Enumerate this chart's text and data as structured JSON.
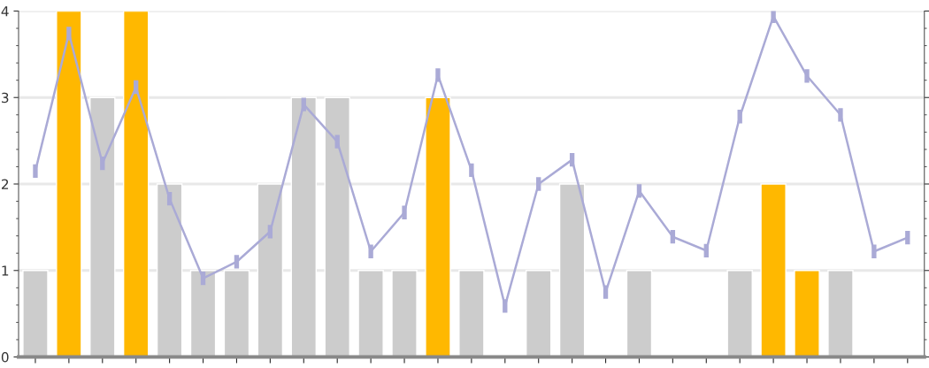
{
  "chart_data": {
    "type": "bar",
    "categories": [
      null,
      null,
      null,
      null,
      null,
      null,
      null,
      null,
      null,
      null,
      null,
      null,
      null,
      null,
      null,
      null,
      null,
      null,
      null,
      null,
      null,
      null,
      null,
      null,
      null,
      null,
      null
    ],
    "series": [
      {
        "values": [
          1,
          4,
          3,
          4,
          2,
          1,
          1,
          2,
          3,
          3,
          1,
          1,
          3,
          1,
          null,
          1,
          2,
          null,
          1,
          null,
          null,
          1,
          2,
          1,
          1,
          null,
          null
        ],
        "colors": [
          "#cccccc",
          "#ffb800",
          "#cccccc",
          "#ffb800",
          "#cccccc",
          "#cccccc",
          "#cccccc",
          "#cccccc",
          "#cccccc",
          "#cccccc",
          "#cccccc",
          "#cccccc",
          "#ffb800",
          "#cccccc",
          null,
          "#cccccc",
          "#cccccc",
          null,
          "#cccccc",
          null,
          null,
          "#cccccc",
          "#ffb800",
          "#ffb800",
          "#cccccc",
          null,
          null
        ]
      },
      {
        "type": "line",
        "color": "#aaaad6",
        "marker": "square",
        "values": [
          2.15,
          3.74,
          2.24,
          3.12,
          1.83,
          0.91,
          1.1,
          1.45,
          2.92,
          2.49,
          1.22,
          1.67,
          3.26,
          2.16,
          0.59,
          2.0,
          2.28,
          0.75,
          1.92,
          1.39,
          1.23,
          2.78,
          3.94,
          3.25,
          2.8,
          1.22,
          1.38
        ]
      }
    ],
    "ylim": [
      0,
      4
    ],
    "yticks": [
      0,
      1,
      2,
      3,
      4
    ],
    "grid": "y",
    "tick_labels": "y"
  }
}
